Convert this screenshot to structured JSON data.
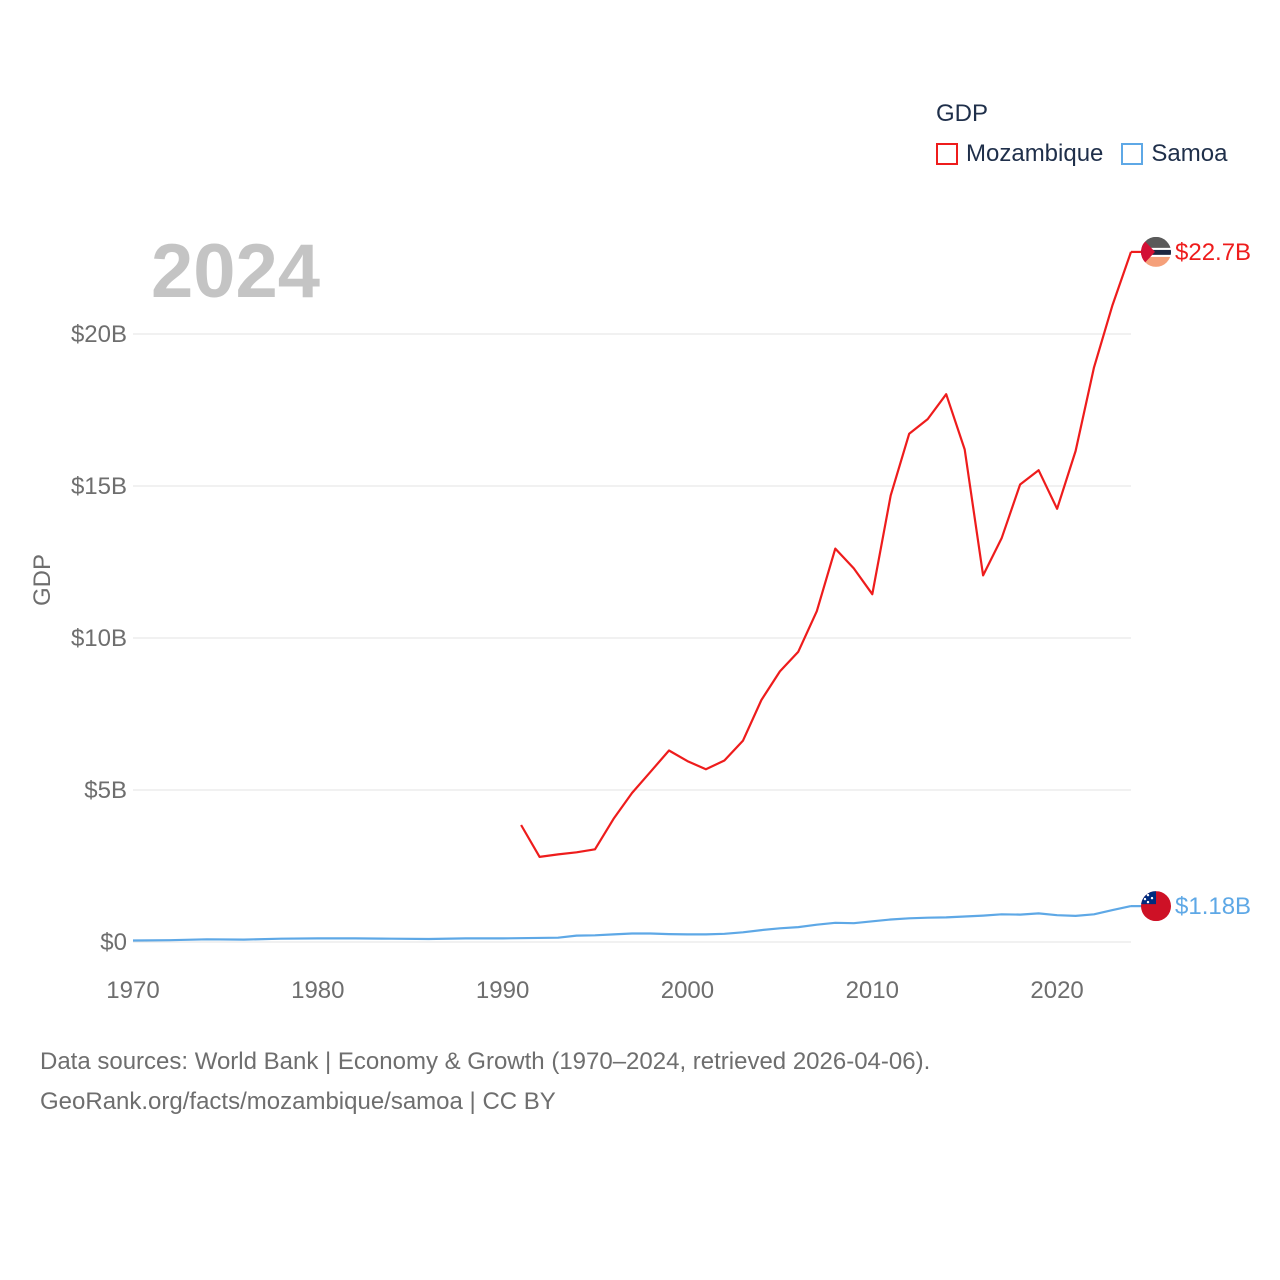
{
  "legend": {
    "title": "GDP",
    "items": [
      "Mozambique",
      "Samoa"
    ]
  },
  "year_label": "2024",
  "footer": {
    "line1": "Data sources: World Bank | Economy & Growth (1970–2024, retrieved 2026-04-06).",
    "line2": "GeoRank.org/facts/mozambique/samoa | CC BY"
  },
  "colors": {
    "mozambique": "#ee1c1c",
    "samoa": "#5ea8e6",
    "grid": "#e3e3e3",
    "tick": "#6e6e6e"
  },
  "chart_data": {
    "type": "line",
    "title": "GDP",
    "xlabel": "",
    "ylabel": "GDP",
    "xlim": [
      1970,
      2024
    ],
    "ylim": [
      0,
      23
    ],
    "x_ticks": [
      1970,
      1980,
      1990,
      2000,
      2010,
      2020
    ],
    "x_tick_labels": [
      "1970",
      "1980",
      "1990",
      "2000",
      "2010",
      "2020"
    ],
    "y_ticks": [
      0,
      5,
      10,
      15,
      20
    ],
    "y_tick_labels": [
      "$0",
      "$5B",
      "$10B",
      "$15B",
      "$20B"
    ],
    "units": "billion USD",
    "series": [
      {
        "name": "Mozambique",
        "color": "#ee1c1c",
        "end_label": "$22.7B",
        "x": [
          1991,
          1992,
          1993,
          1994,
          1995,
          1996,
          1997,
          1998,
          1999,
          2000,
          2001,
          2002,
          2003,
          2004,
          2005,
          2006,
          2007,
          2008,
          2009,
          2010,
          2011,
          2012,
          2013,
          2014,
          2015,
          2016,
          2017,
          2018,
          2019,
          2020,
          2021,
          2022,
          2023,
          2024
        ],
        "y": [
          3.85,
          2.8,
          2.88,
          2.95,
          3.05,
          4.05,
          4.9,
          5.6,
          6.3,
          5.95,
          5.68,
          5.97,
          6.62,
          7.96,
          8.9,
          9.55,
          10.88,
          12.94,
          12.29,
          11.44,
          14.69,
          16.72,
          17.2,
          18.02,
          16.2,
          12.06,
          13.28,
          15.05,
          15.52,
          14.25,
          16.15,
          18.9,
          20.95,
          22.7
        ]
      },
      {
        "name": "Samoa",
        "color": "#5ea8e6",
        "end_label": "$1.18B",
        "x": [
          1970,
          1972,
          1974,
          1976,
          1978,
          1980,
          1982,
          1984,
          1986,
          1988,
          1990,
          1993,
          1994,
          1995,
          1996,
          1997,
          1998,
          1999,
          2000,
          2001,
          2002,
          2003,
          2004,
          2005,
          2006,
          2007,
          2008,
          2009,
          2010,
          2011,
          2012,
          2013,
          2014,
          2015,
          2016,
          2017,
          2018,
          2019,
          2020,
          2021,
          2022,
          2023,
          2024
        ],
        "y": [
          0.05,
          0.06,
          0.09,
          0.08,
          0.11,
          0.12,
          0.12,
          0.11,
          0.1,
          0.12,
          0.12,
          0.14,
          0.21,
          0.22,
          0.25,
          0.28,
          0.28,
          0.26,
          0.25,
          0.25,
          0.27,
          0.32,
          0.39,
          0.45,
          0.49,
          0.57,
          0.63,
          0.62,
          0.68,
          0.74,
          0.78,
          0.8,
          0.81,
          0.84,
          0.87,
          0.91,
          0.9,
          0.94,
          0.88,
          0.86,
          0.91,
          1.05,
          1.18
        ]
      }
    ]
  }
}
